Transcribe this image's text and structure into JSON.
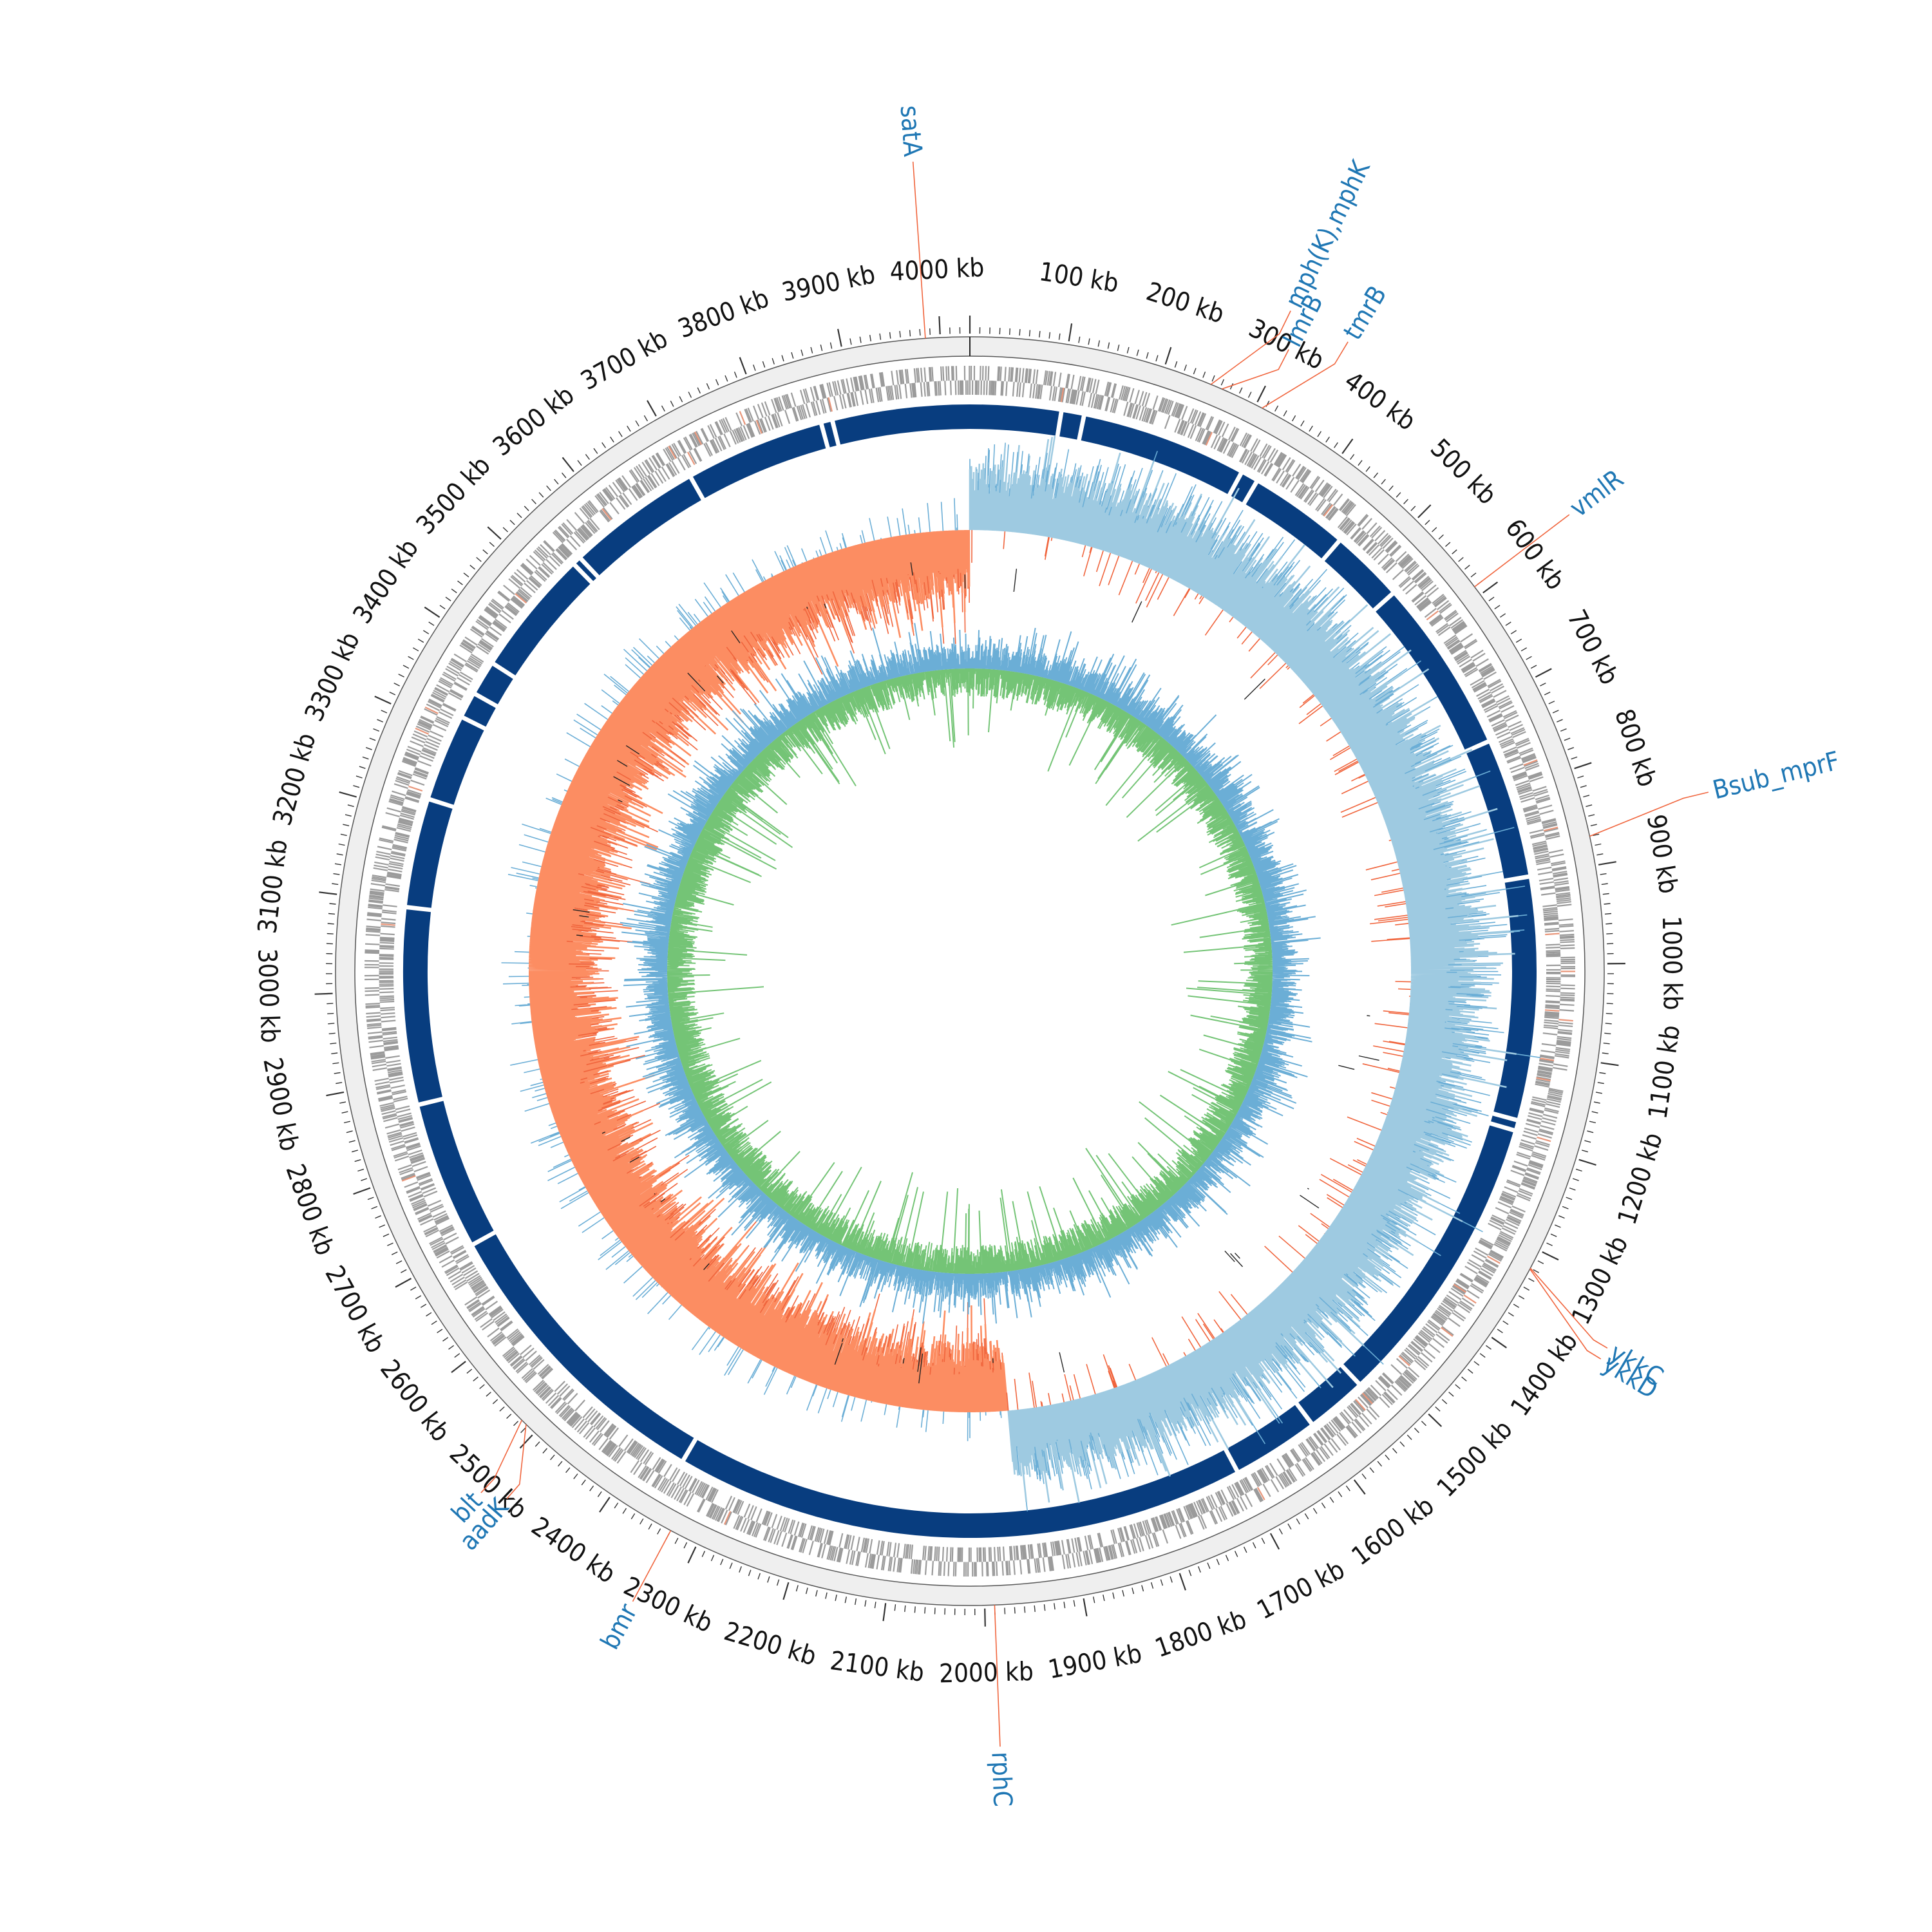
{
  "genome": {
    "length_kb": 4030,
    "scale_unit": "kb",
    "start_at_top": true,
    "clockwise": true
  },
  "tick_labels": [
    "4000 kb",
    "100 kb",
    "200 kb",
    "300 kb",
    "400 kb",
    "500 kb",
    "600 kb",
    "700 kb",
    "800 kb",
    "900 kb",
    "1000 kb",
    "1100 kb",
    "1200 kb",
    "1300 kb",
    "1400 kb",
    "1500 kb",
    "1600 kb",
    "1700 kb",
    "1800 kb",
    "1900 kb",
    "2000 kb",
    "2100 kb",
    "2200 kb",
    "2300 kb",
    "2400 kb",
    "2500 kb",
    "2600 kb",
    "2700 kb",
    "2800 kb",
    "2900 kb",
    "3000 kb",
    "3100 kb",
    "3200 kb",
    "3300 kb",
    "3400 kb",
    "3500 kb",
    "3600 kb",
    "3700 kb",
    "3800 kb",
    "3900 kb"
  ],
  "tick_positions_kb": [
    4000,
    100,
    200,
    300,
    400,
    500,
    600,
    700,
    800,
    900,
    1000,
    1100,
    1200,
    1300,
    1400,
    1500,
    1600,
    1700,
    1800,
    1900,
    2000,
    2100,
    2200,
    2300,
    2400,
    2500,
    2600,
    2700,
    2800,
    2900,
    3000,
    3100,
    3200,
    3300,
    3400,
    3500,
    3600,
    3700,
    3800,
    3900
  ],
  "resistance_genes": [
    {
      "label": "satA",
      "position_kb": 3985
    },
    {
      "label": "mph(K),mphK",
      "position_kb": 250
    },
    {
      "label": "lmrB",
      "position_kb": 262
    },
    {
      "label": "tmrB",
      "position_kb": 307
    },
    {
      "label": "vmlR",
      "position_kb": 590
    },
    {
      "label": "Bsub_mprF",
      "position_kb": 870
    },
    {
      "label": "ykkC",
      "position_kb": 1320
    },
    {
      "label": "ykkD",
      "position_kb": 1321
    },
    {
      "label": "rphC",
      "position_kb": 1990
    },
    {
      "label": "bmr",
      "position_kb": 2330
    },
    {
      "label": "aadK",
      "position_kb": 2512
    },
    {
      "label": "blt",
      "position_kb": 2518
    }
  ],
  "colors": {
    "outer_ring": "#efefef",
    "cds_features": "#9b9b9b",
    "feature_highlight": "#e9967a",
    "contig_ring": "#083d7f",
    "gc_skew_positive": "#9ecae1",
    "gc_skew_negative": "#fc8d62",
    "gc_skew_spikes": "#6baed6",
    "gc_content_base": "#74c476",
    "gc_content_spikes": "#6baed6",
    "leader_line": "#f0643c",
    "gene_label": "#1f77b4",
    "tick": "#333333"
  },
  "contig_breaks_kb": [
    104,
    130,
    320,
    340,
    455,
    540,
    740,
    900,
    1178,
    1190,
    1530,
    1600,
    1700,
    2355,
    2700,
    2870,
    3095,
    3220,
    3320,
    3350,
    3390,
    3535,
    3545,
    3700,
    3860,
    3873
  ],
  "tracks": {
    "gc_skew": {
      "leading_start_kb": 0,
      "leading_end_kb": 1960,
      "positive_color_key": "gc_skew_positive",
      "negative_color_key": "gc_skew_negative"
    },
    "gc_content": {
      "base_color_key": "gc_content_base",
      "spike_color_key": "gc_content_spikes"
    }
  }
}
